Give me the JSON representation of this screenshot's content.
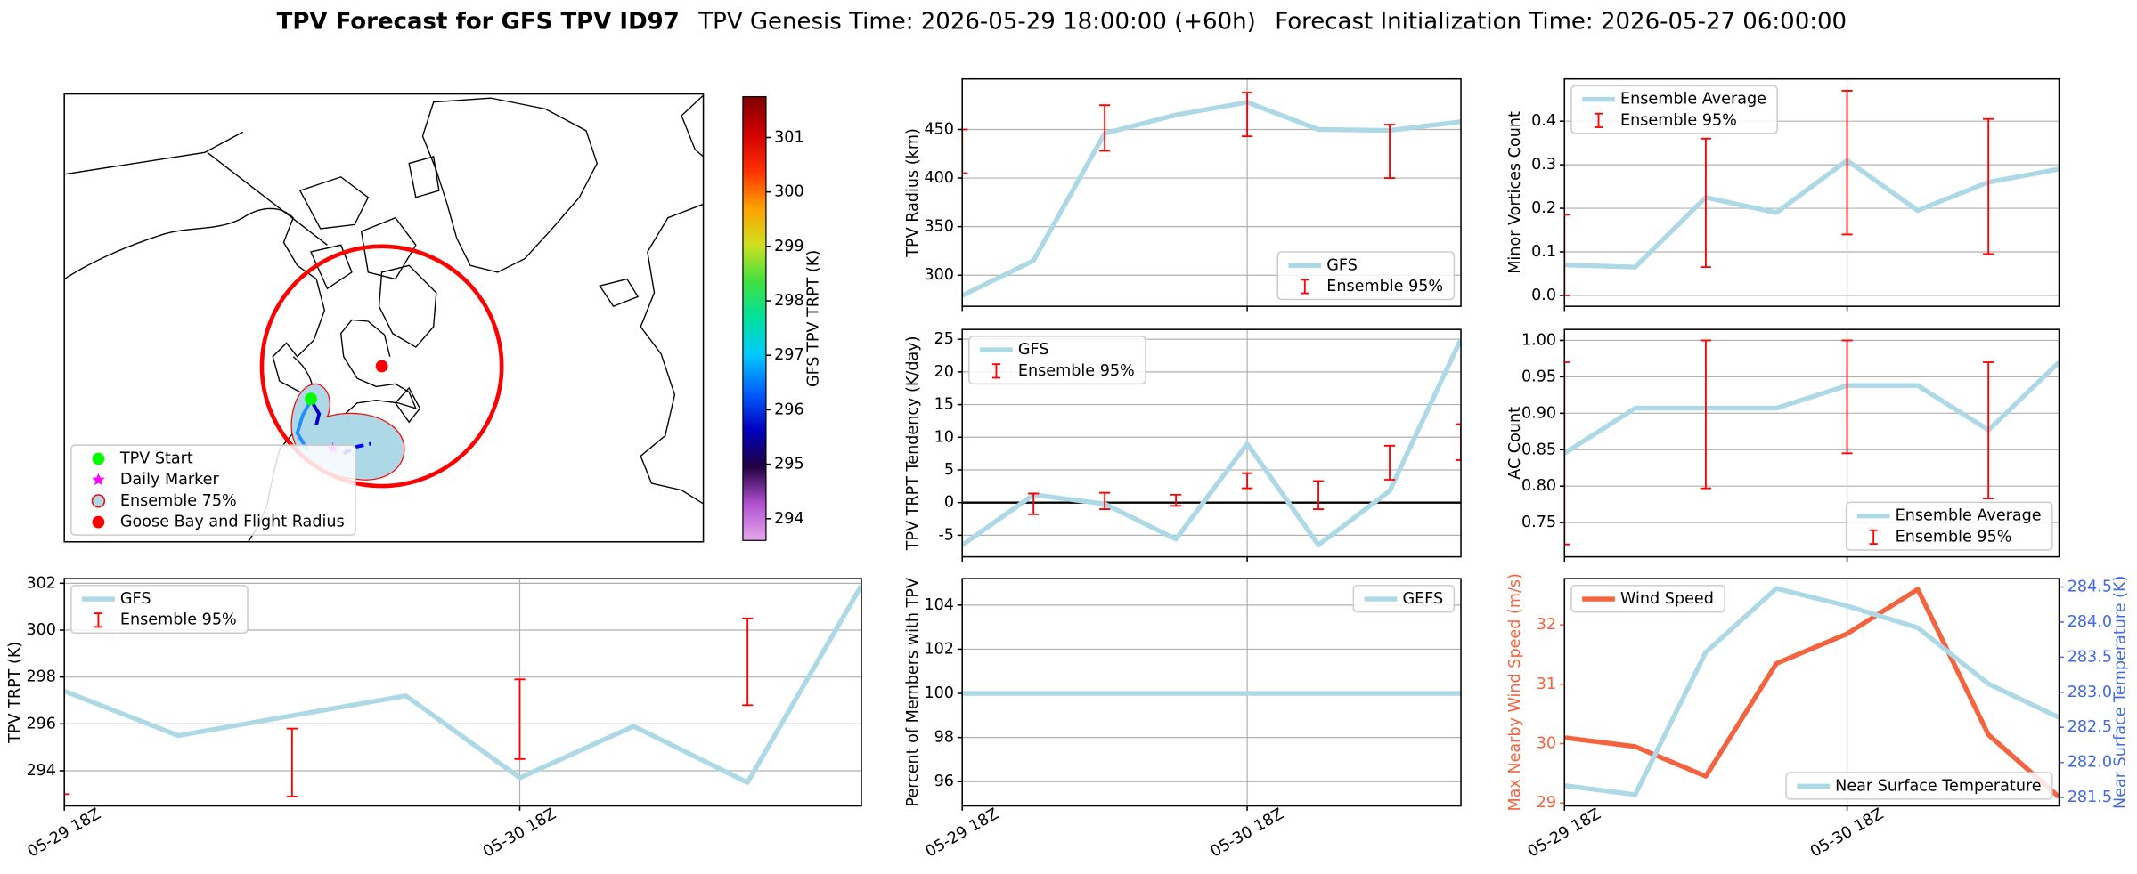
{
  "suptitle": {
    "bold": "TPV Forecast for GFS TPV ID97",
    "genesis": "TPV Genesis Time: 2026-05-29 18:00:00 (+60h)",
    "init": "Forecast Initialization Time: 2026-05-27 06:00:00"
  },
  "chart_data": [
    {
      "type": "map",
      "legend": "lower left",
      "legend_entries": [
        {
          "name": "TPV Start",
          "color": "#00ff00",
          "marker": "circle"
        },
        {
          "name": "Daily Marker",
          "color": "#ff00ff",
          "marker": "star"
        },
        {
          "name": "Ensemble 75%",
          "color": "#add8e6",
          "edgecolor": "#ff0000",
          "marker": "circle"
        },
        {
          "name": "Goose Bay and Flight Radius",
          "color": "#ff0000",
          "marker": "circle"
        }
      ],
      "colorbar": {
        "label": "GFS TPV TRPT (K)",
        "lim": [
          293.6,
          301.75
        ],
        "ticks": [
          294,
          295,
          296,
          297,
          298,
          299,
          300,
          301
        ],
        "colors": [
          "#e6a8ec",
          "#b050d0",
          "#200040",
          "#0000c0",
          "#0060ff",
          "#00c8ff",
          "#00e0a0",
          "#40e040",
          "#d0e020",
          "#ffa000",
          "#ff3000",
          "#d00000",
          "#800000"
        ]
      }
    },
    {
      "type": "line",
      "ylabel": "TPV Radius (km)",
      "xlim": [
        0,
        42
      ],
      "xticks": [
        0,
        24
      ],
      "ylim": [
        268,
        502
      ],
      "yticks": [
        300,
        350,
        400,
        450
      ],
      "grid": true,
      "legend": "lower right",
      "series": [
        {
          "name": "GFS",
          "color": "#add8e6",
          "x": [
            0,
            6,
            12,
            18,
            24,
            30,
            36,
            42
          ],
          "values": [
            279,
            315,
            446,
            465,
            478,
            450,
            449,
            458
          ]
        },
        {
          "name": "Ensemble 95%",
          "type": "errorbar",
          "color": "#ff0000",
          "x": [
            0,
            12,
            24,
            36
          ],
          "low": [
            405,
            428,
            443,
            400
          ],
          "high": [
            450,
            475,
            488,
            455
          ]
        }
      ]
    },
    {
      "type": "line",
      "ylabel": "Minor Vortices Count",
      "xlim": [
        0,
        42
      ],
      "xticks": [
        0,
        24
      ],
      "ylim": [
        -0.025,
        0.497
      ],
      "yticks": [
        {
          "value": 0,
          "label": "0.0"
        },
        0.1,
        0.2,
        0.3,
        0.4
      ],
      "grid": true,
      "legend": "upper left",
      "series": [
        {
          "name": "Ensemble Average",
          "color": "#add8e6",
          "x": [
            0,
            6,
            12,
            18,
            24,
            30,
            36,
            42
          ],
          "values": [
            0.07,
            0.065,
            0.225,
            0.19,
            0.31,
            0.195,
            0.26,
            0.29
          ]
        },
        {
          "name": "Ensemble 95%",
          "type": "errorbar",
          "color": "#ff0000",
          "x": [
            0,
            12,
            24,
            36
          ],
          "low": [
            0.0,
            0.065,
            0.14,
            0.095
          ],
          "high": [
            0.185,
            0.36,
            0.47,
            0.405
          ]
        }
      ]
    },
    {
      "type": "line",
      "ylabel": "TPV TRPT Tendency (K/day)",
      "xlim": [
        0,
        42
      ],
      "xticks": [
        0,
        24
      ],
      "ylim": [
        -8.3,
        26.5
      ],
      "yticks": [
        -5,
        0,
        5,
        10,
        15,
        20,
        25
      ],
      "grid": true,
      "legend": "upper left",
      "hline": 0,
      "series": [
        {
          "name": "GFS",
          "color": "#add8e6",
          "x": [
            0,
            6,
            12,
            18,
            24,
            30,
            36,
            42
          ],
          "values": [
            -6.5,
            1.2,
            -0.2,
            -5.6,
            9,
            -6.5,
            1.8,
            25
          ]
        },
        {
          "name": "Ensemble 95%",
          "type": "errorbar",
          "color": "#ff0000",
          "x": [
            6,
            12,
            18,
            24,
            30,
            36,
            42
          ],
          "low": [
            -1.8,
            -1.0,
            -0.5,
            2.2,
            -1.0,
            3.5,
            6.5
          ],
          "high": [
            1.4,
            1.5,
            1.2,
            4.5,
            3.3,
            8.7,
            12.0
          ]
        }
      ]
    },
    {
      "type": "line",
      "ylabel": "AC Count",
      "xlim": [
        0,
        42
      ],
      "xticks": [
        0,
        24
      ],
      "ylim": [
        0.703,
        1.015
      ],
      "yticks": [
        0.75,
        {
          "value": 0.8,
          "label": "0.80"
        },
        0.85,
        {
          "value": 0.9,
          "label": "0.90"
        },
        0.95,
        {
          "value": 1,
          "label": "1.00"
        }
      ],
      "grid": true,
      "legend": "lower right",
      "series": [
        {
          "name": "Ensemble Average",
          "color": "#add8e6",
          "x": [
            0,
            6,
            12,
            18,
            24,
            30,
            36,
            42
          ],
          "values": [
            0.845,
            0.907,
            0.907,
            0.907,
            0.938,
            0.938,
            0.877,
            0.97
          ]
        },
        {
          "name": "Ensemble 95%",
          "type": "errorbar",
          "color": "#ff0000",
          "x": [
            0,
            12,
            24,
            36
          ],
          "low": [
            0.72,
            0.797,
            0.845,
            0.783
          ],
          "high": [
            0.97,
            1.0,
            1.0,
            0.97
          ]
        }
      ]
    },
    {
      "type": "line",
      "ylabel": "TPV TRPT (K)",
      "xlim": [
        0,
        42
      ],
      "xticks": [
        {
          "value": 0,
          "label": "05-29 18Z"
        },
        {
          "value": 24,
          "label": "05-30 18Z"
        }
      ],
      "ylim": [
        292.5,
        302.2
      ],
      "yticks": [
        294,
        296,
        298,
        300,
        302
      ],
      "grid": true,
      "legend": "upper left",
      "series": [
        {
          "name": "GFS",
          "color": "#add8e6",
          "x": [
            0,
            6,
            12,
            18,
            24,
            30,
            36,
            42
          ],
          "values": [
            297.4,
            295.5,
            296.35,
            297.2,
            293.7,
            295.9,
            293.5,
            301.9
          ]
        },
        {
          "name": "Ensemble 95%",
          "type": "errorbar",
          "color": "#ff0000",
          "x": [
            0,
            12,
            24,
            36
          ],
          "low": [
            291.5,
            292.9,
            294.5,
            296.8
          ],
          "high": [
            293.0,
            295.8,
            297.9,
            300.5
          ]
        }
      ]
    },
    {
      "type": "line",
      "ylabel": "Percent of Members with TPV",
      "xlim": [
        0,
        42
      ],
      "xticks": [
        {
          "value": 0,
          "label": "05-29 18Z"
        },
        {
          "value": 24,
          "label": "05-30 18Z"
        }
      ],
      "ylim": [
        94.9,
        105.2
      ],
      "yticks": [
        96,
        98,
        100,
        102,
        104
      ],
      "grid": true,
      "legend": "upper right",
      "series": [
        {
          "name": "GEFS",
          "color": "#add8e6",
          "x": [
            0,
            6,
            12,
            18,
            24,
            30,
            36,
            42
          ],
          "values": [
            100,
            100,
            100,
            100,
            100,
            100,
            100,
            100
          ]
        }
      ]
    },
    {
      "type": "line",
      "ylabel": "Max Nearby Wind Speed (m/s)",
      "y2label": "Near Surface Temperature (K)",
      "ycolor": "#f4623e",
      "y2color": "#4169e1",
      "xlim": [
        0,
        42
      ],
      "xticks": [
        {
          "value": 0,
          "label": "05-29 18Z"
        },
        {
          "value": 24,
          "label": "05-30 18Z"
        }
      ],
      "ylim": [
        28.95,
        32.78
      ],
      "yticks": [
        29,
        30,
        31,
        32
      ],
      "y2lim": [
        281.38,
        284.62
      ],
      "y2ticks": [
        281.5,
        {
          "value": 282,
          "label": "282.0"
        },
        282.5,
        {
          "value": 283,
          "label": "283.0"
        },
        283.5,
        {
          "value": 284,
          "label": "284.0"
        },
        284.5
      ],
      "grid": "x",
      "series": [
        {
          "name": "Wind Speed",
          "color": "#f4623e",
          "legend": "upper left",
          "x": [
            0,
            6,
            12,
            18,
            24,
            30,
            36,
            42
          ],
          "values": [
            30.1,
            29.95,
            29.45,
            31.35,
            31.85,
            32.6,
            30.15,
            29.1
          ]
        },
        {
          "name": "Near Surface Temperature",
          "color": "#add8e6",
          "axis": "y2",
          "legend": "lower right",
          "x": [
            0,
            6,
            12,
            18,
            24,
            30,
            36,
            42
          ],
          "values": [
            281.67,
            281.54,
            283.57,
            284.48,
            284.23,
            283.92,
            283.12,
            282.64
          ]
        }
      ]
    }
  ]
}
